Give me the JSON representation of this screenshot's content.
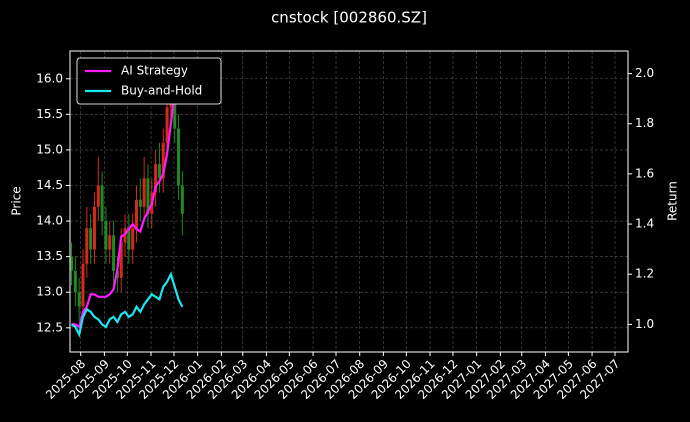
{
  "chart_data": {
    "type": "candlestick",
    "title": "cnstock [002860.SZ]",
    "ylabel": "Price",
    "y2label": "Return",
    "x": [
      "2025-07-20",
      "2025-07-25",
      "2025-07-30",
      "2025-08-04",
      "2025-08-09",
      "2025-08-14",
      "2025-08-19",
      "2025-08-24",
      "2025-08-29",
      "2025-09-03",
      "2025-09-08",
      "2025-09-13",
      "2025-09-18",
      "2025-09-23",
      "2025-09-28",
      "2025-10-03",
      "2025-10-08",
      "2025-10-13",
      "2025-10-18",
      "2025-10-23",
      "2025-10-28",
      "2025-11-02",
      "2025-11-07",
      "2025-11-12",
      "2025-11-17",
      "2025-11-22",
      "2025-11-27",
      "2025-12-02",
      "2025-12-07",
      "2025-12-12"
    ],
    "open": [
      13.5,
      13.3,
      13.0,
      12.8,
      13.4,
      13.9,
      13.6,
      14.2,
      14.5,
      14.0,
      13.6,
      13.8,
      13.3,
      13.2,
      13.7,
      13.9,
      13.6,
      13.9,
      14.3,
      14.2,
      14.6,
      14.1,
      14.4,
      14.8,
      14.6,
      15.1,
      15.6,
      15.9,
      15.3,
      14.5
    ],
    "high": [
      13.7,
      13.5,
      13.2,
      13.6,
      14.2,
      14.1,
      14.4,
      14.9,
      14.7,
      14.2,
      14.0,
      14.0,
      13.5,
      13.9,
      14.1,
      14.1,
      14.1,
      14.5,
      14.6,
      14.9,
      14.8,
      14.6,
      15.0,
      15.1,
      15.3,
      15.8,
      16.1,
      16.0,
      15.5,
      14.7
    ],
    "low": [
      13.1,
      12.8,
      12.6,
      12.7,
      13.2,
      13.4,
      13.4,
      14.0,
      13.8,
      13.4,
      13.4,
      13.1,
      13.0,
      13.0,
      13.5,
      13.4,
      13.4,
      13.7,
      14.0,
      14.0,
      13.9,
      13.9,
      14.2,
      14.4,
      14.4,
      14.9,
      15.4,
      15.1,
      14.3,
      13.8
    ],
    "close": [
      13.3,
      13.0,
      12.8,
      13.4,
      13.9,
      13.6,
      14.2,
      14.5,
      14.0,
      13.6,
      13.8,
      13.3,
      13.2,
      13.7,
      13.9,
      13.6,
      13.9,
      14.3,
      14.2,
      14.6,
      14.1,
      14.4,
      14.8,
      14.6,
      15.1,
      15.6,
      15.9,
      15.3,
      14.5,
      14.1
    ],
    "up_color": "#d42a1a",
    "down_color": "#1f8a1f",
    "series": [
      {
        "name": "AI Strategy",
        "color": "#ff1aff",
        "axis": "y2",
        "values": [
          1.0,
          1.0,
          0.99,
          1.05,
          1.07,
          1.12,
          1.12,
          1.11,
          1.11,
          1.11,
          1.12,
          1.14,
          1.22,
          1.35,
          1.36,
          1.38,
          1.4,
          1.38,
          1.37,
          1.42,
          1.45,
          1.48,
          1.55,
          1.57,
          1.6,
          1.68,
          1.8,
          1.93,
          2.0,
          2.0
        ]
      },
      {
        "name": "Buy-and-Hold",
        "color": "#1ae8f0",
        "axis": "y2",
        "values": [
          1.0,
          0.99,
          0.96,
          1.03,
          1.06,
          1.05,
          1.03,
          1.02,
          1.0,
          0.99,
          1.02,
          1.03,
          1.01,
          1.04,
          1.05,
          1.03,
          1.04,
          1.07,
          1.05,
          1.08,
          1.1,
          1.12,
          1.11,
          1.1,
          1.15,
          1.17,
          1.2,
          1.15,
          1.1,
          1.07
        ]
      }
    ],
    "xlim": [
      "2025-07-18",
      "2027-07-18"
    ],
    "xticks": [
      "2025-08",
      "2025-09",
      "2025-10",
      "2025-11",
      "2025-12",
      "2026-01",
      "2026-02",
      "2026-03",
      "2026-04",
      "2026-05",
      "2026-06",
      "2026-07",
      "2026-08",
      "2026-09",
      "2026-10",
      "2026-11",
      "2026-12",
      "2027-01",
      "2027-02",
      "2027-03",
      "2027-04",
      "2027-05",
      "2027-06",
      "2027-07"
    ],
    "ylim": [
      12.16,
      16.39
    ],
    "yticks": [
      12.5,
      {
        "value": 13,
        "label": "13.0"
      },
      13.5,
      {
        "value": 14,
        "label": "14.0"
      },
      14.5,
      {
        "value": 15,
        "label": "15.0"
      },
      15.5,
      {
        "value": 16,
        "label": "16.0"
      }
    ],
    "y2lim": [
      0.89,
      2.09
    ],
    "y2ticks": [
      {
        "value": 1,
        "label": "1.0"
      },
      1.2,
      1.4,
      1.6,
      1.8,
      {
        "value": 2,
        "label": "2.0"
      }
    ],
    "grid": true,
    "legend": "upper left"
  }
}
